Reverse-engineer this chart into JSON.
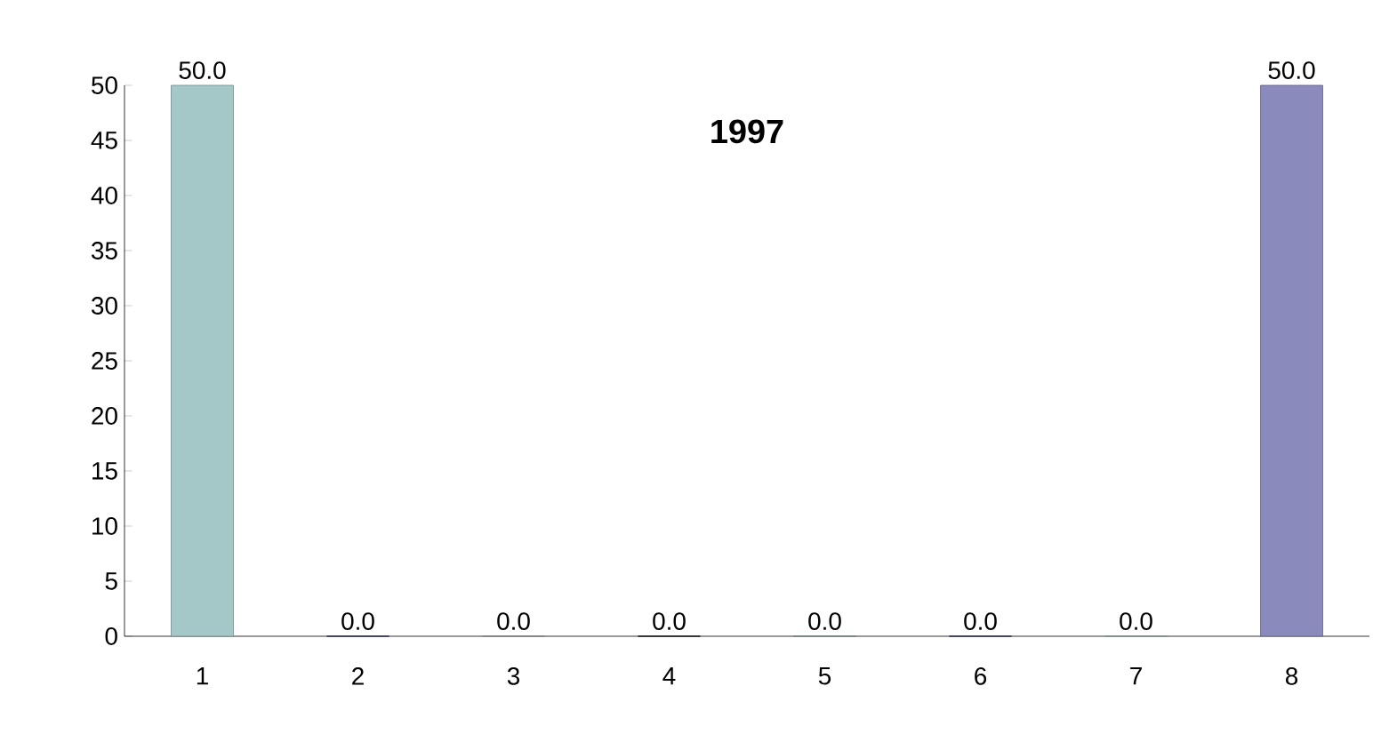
{
  "chart_data": {
    "type": "bar",
    "title": "1997",
    "categories": [
      "1",
      "2",
      "3",
      "4",
      "5",
      "6",
      "7",
      "8"
    ],
    "values": [
      50.0,
      0.0,
      0.0,
      0.0,
      0.0,
      0.0,
      0.0,
      50.0
    ],
    "colors": [
      "#a4c8c8",
      "#1f1f6e",
      "#b4b4b4",
      "#000000",
      "#9ab0b0",
      "#1f1f6e",
      "#a8cccc",
      "#8a8abc"
    ],
    "value_labels": [
      "50.0",
      "0.0",
      "0.0",
      "0.0",
      "0.0",
      "0.0",
      "0.0",
      "50.0"
    ],
    "ylim": [
      0,
      50
    ],
    "yticks": [
      0,
      5,
      10,
      15,
      20,
      25,
      30,
      35,
      40,
      45,
      50
    ],
    "grid": false
  }
}
